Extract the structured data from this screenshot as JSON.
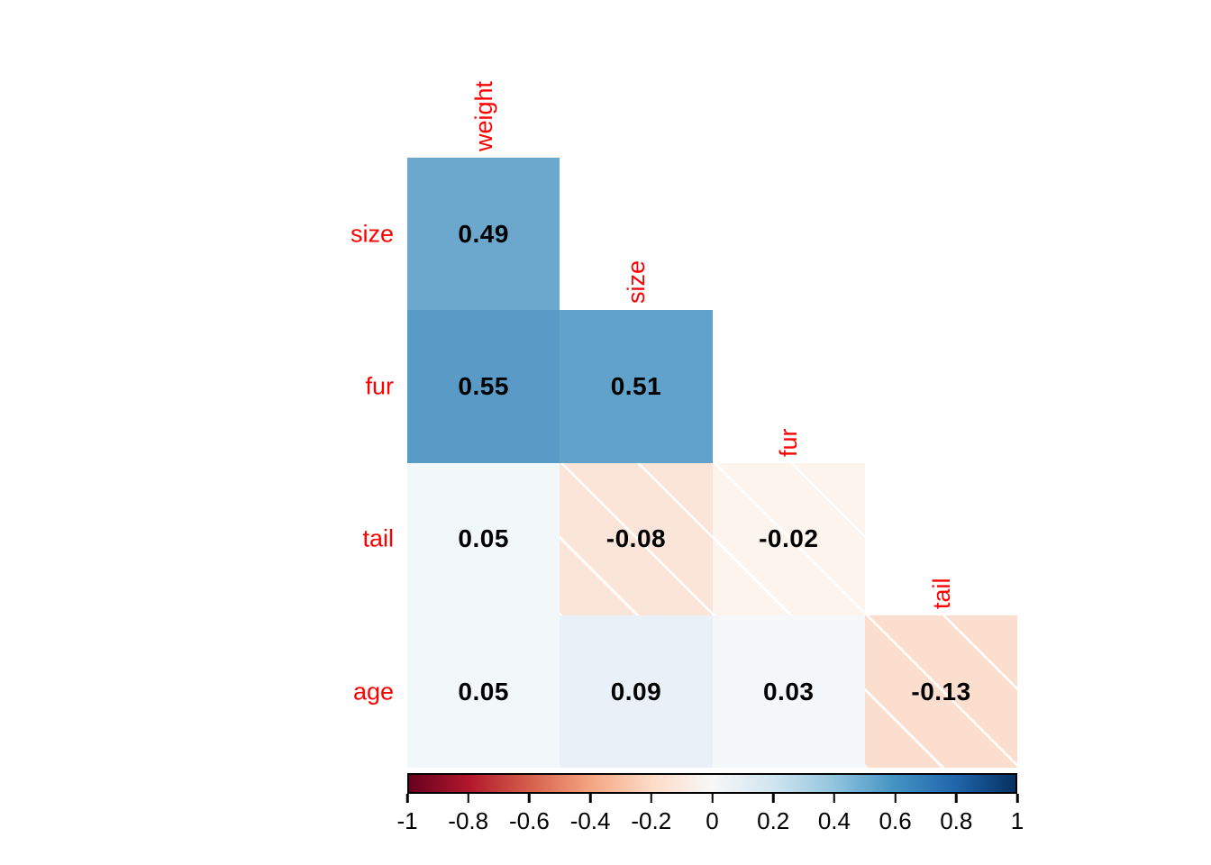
{
  "chart_data": {
    "type": "heatmap",
    "subtype": "correlation-matrix-lower-triangle",
    "variables": [
      "weight",
      "size",
      "fur",
      "tail",
      "age"
    ],
    "col_labels": [
      "weight",
      "size",
      "fur",
      "tail"
    ],
    "row_labels": [
      "size",
      "fur",
      "tail",
      "age"
    ],
    "label_color": "#ff0000",
    "value_text_color": "#000000",
    "negative_cell_hatch": "white diagonal lines (top-left to bottom-right)",
    "cells": [
      {
        "row": "size",
        "col": "weight",
        "value": 0.49,
        "label": "0.49",
        "color": "#6CA7CE",
        "hatched": false
      },
      {
        "row": "fur",
        "col": "weight",
        "value": 0.55,
        "label": "0.55",
        "color": "#599BC6",
        "hatched": false
      },
      {
        "row": "fur",
        "col": "size",
        "value": 0.51,
        "label": "0.51",
        "color": "#61A2CB",
        "hatched": false
      },
      {
        "row": "tail",
        "col": "weight",
        "value": 0.05,
        "label": "0.05",
        "color": "#F2F7FA",
        "hatched": false
      },
      {
        "row": "tail",
        "col": "size",
        "value": -0.08,
        "label": "-0.08",
        "color": "#FBE5D9",
        "hatched": true
      },
      {
        "row": "tail",
        "col": "fur",
        "value": -0.02,
        "label": "-0.02",
        "color": "#FDF4EE",
        "hatched": true
      },
      {
        "row": "age",
        "col": "weight",
        "value": 0.05,
        "label": "0.05",
        "color": "#F2F7FA",
        "hatched": false
      },
      {
        "row": "age",
        "col": "size",
        "value": 0.09,
        "label": "0.09",
        "color": "#E9F0F7",
        "hatched": false
      },
      {
        "row": "age",
        "col": "fur",
        "value": 0.03,
        "label": "0.03",
        "color": "#F5F8FB",
        "hatched": false
      },
      {
        "row": "age",
        "col": "tail",
        "value": -0.13,
        "label": "-0.13",
        "color": "#FBDECE",
        "hatched": true
      }
    ],
    "colorbar": {
      "min": -1,
      "max": 1,
      "ticks": [
        {
          "value": -1,
          "label": "-1"
        },
        {
          "value": -0.8,
          "label": "-0.8"
        },
        {
          "value": -0.6,
          "label": "-0.6"
        },
        {
          "value": -0.4,
          "label": "-0.4"
        },
        {
          "value": -0.2,
          "label": "-0.2"
        },
        {
          "value": 0,
          "label": "0"
        },
        {
          "value": 0.2,
          "label": "0.2"
        },
        {
          "value": 0.4,
          "label": "0.4"
        },
        {
          "value": 0.6,
          "label": "0.6"
        },
        {
          "value": 0.8,
          "label": "0.8"
        },
        {
          "value": 1,
          "label": "1"
        }
      ],
      "gradient_stops": [
        {
          "pos": 0.0,
          "color": "#67001F"
        },
        {
          "pos": 0.1,
          "color": "#B2182B"
        },
        {
          "pos": 0.2,
          "color": "#D6604D"
        },
        {
          "pos": 0.3,
          "color": "#F4A582"
        },
        {
          "pos": 0.4,
          "color": "#FDDBC7"
        },
        {
          "pos": 0.5,
          "color": "#F7F7F7"
        },
        {
          "pos": 0.6,
          "color": "#D1E5F0"
        },
        {
          "pos": 0.7,
          "color": "#92C5DE"
        },
        {
          "pos": 0.8,
          "color": "#4393C3"
        },
        {
          "pos": 0.9,
          "color": "#2166AC"
        },
        {
          "pos": 1.0,
          "color": "#053061"
        }
      ]
    }
  }
}
